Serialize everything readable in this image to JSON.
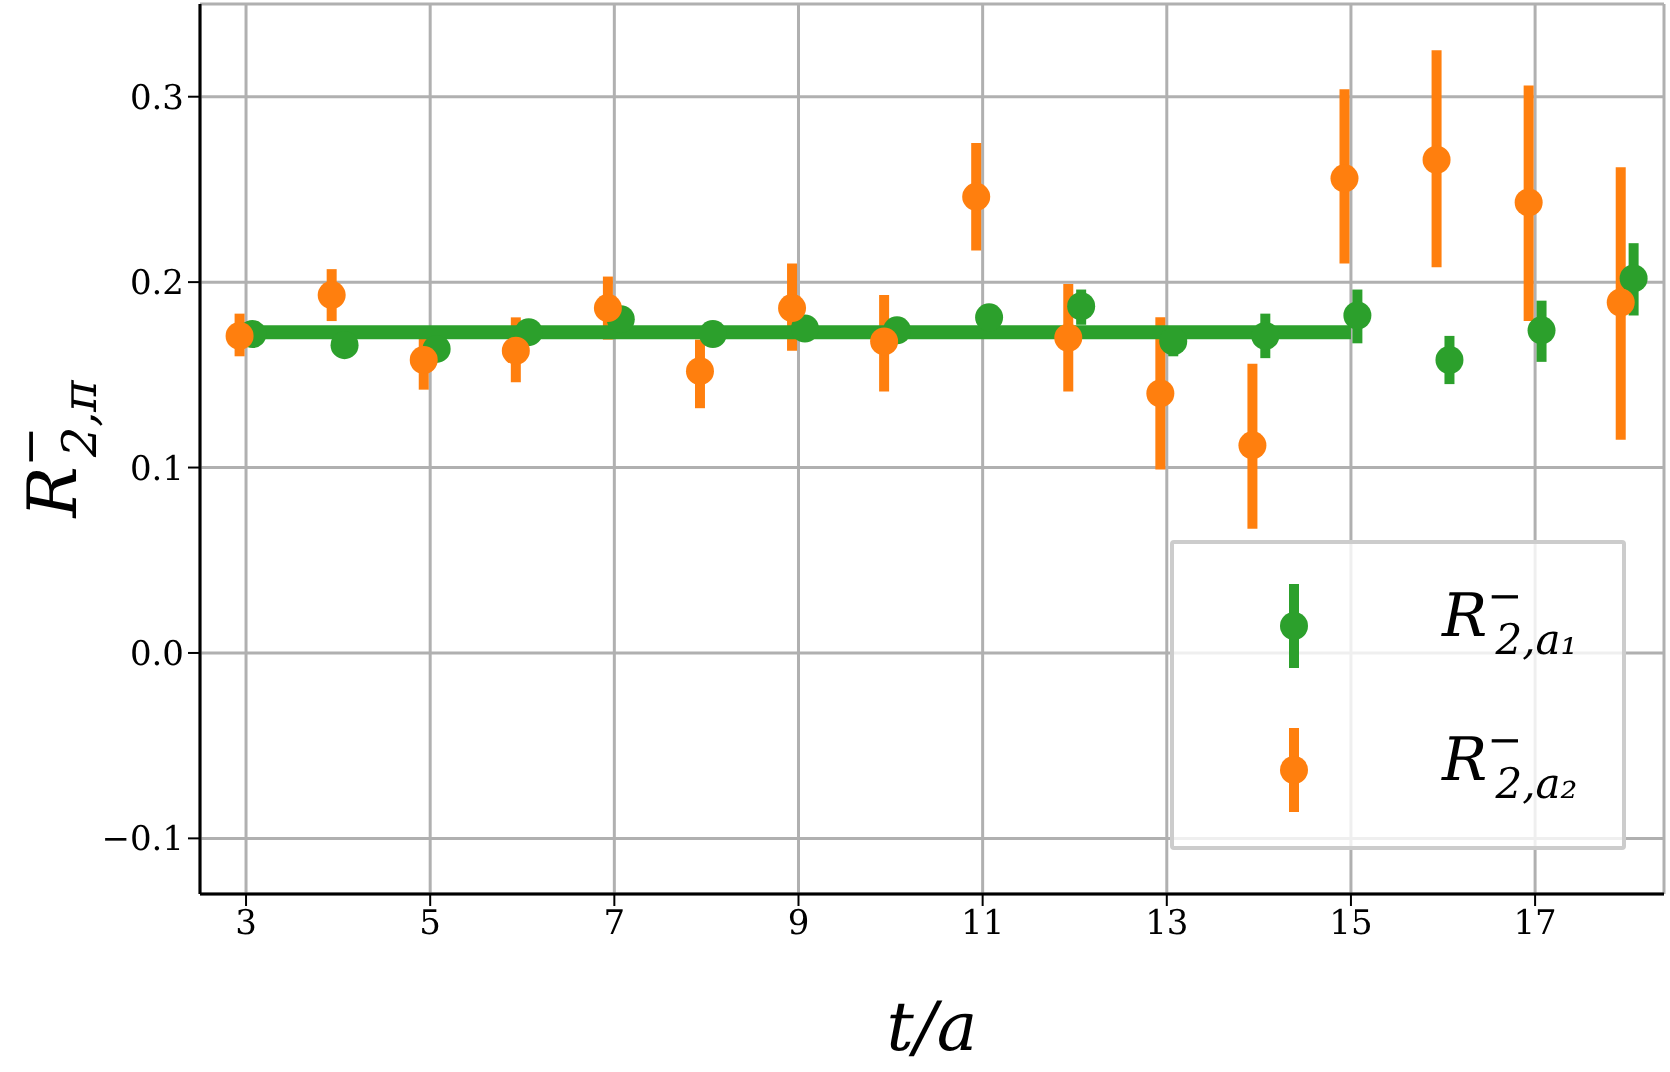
{
  "chart_data": {
    "type": "scatter",
    "xlabel": "t/a",
    "ylabel": "R$^{−}$$_{2,π}$",
    "xlim": [
      2.5,
      18.4
    ],
    "ylim": [
      -0.13,
      0.35
    ],
    "xticks": [
      3,
      5,
      7,
      9,
      11,
      13,
      15,
      17
    ],
    "yticks": [
      {
        "value": -0.1,
        "label": "−0.1"
      },
      {
        "value": 0,
        "label": "0.0"
      },
      0.1,
      0.2,
      0.3
    ],
    "grid": true,
    "legend": "bottom right",
    "marker": "circle",
    "series": [
      {
        "name": "R$^{−}$$_{2,a₁}$",
        "color": "#2ca02c",
        "x": [
          3.07,
          4.07,
          5.07,
          6.07,
          7.07,
          8.07,
          9.07,
          10.07,
          11.07,
          12.07,
          13.07,
          14.07,
          15.07,
          16.07,
          17.07,
          18.07
        ],
        "values": [
          0.172,
          0.166,
          0.164,
          0.173,
          0.18,
          0.172,
          0.175,
          0.174,
          0.181,
          0.187,
          0.168,
          0.171,
          0.182,
          0.158,
          0.174,
          0.202
        ],
        "errors": [
          0.005,
          0.004,
          0.006,
          0.005,
          0.006,
          0.004,
          0.005,
          0.005,
          0.005,
          [
            0.177,
            0.196
          ],
          0.008,
          [
            0.159,
            0.183
          ],
          [
            0.167,
            0.196
          ],
          [
            0.145,
            0.171
          ],
          [
            0.157,
            0.19
          ],
          [
            0.182,
            0.221
          ]
        ]
      },
      {
        "name": "R$^{−}$$_{2,a₂}$",
        "color": "#ff7f0e",
        "x": [
          2.93,
          3.93,
          4.93,
          5.93,
          6.93,
          7.93,
          8.93,
          9.93,
          10.93,
          11.93,
          12.93,
          13.93,
          14.93,
          15.93,
          16.93,
          17.93
        ],
        "values": [
          0.171,
          0.193,
          0.158,
          0.163,
          0.186,
          0.152,
          0.186,
          0.168,
          0.246,
          0.17,
          0.14,
          0.112,
          0.256,
          0.266,
          0.243,
          0.189
        ],
        "errors": [
          [
            0.16,
            0.183
          ],
          [
            0.179,
            0.207
          ],
          [
            0.142,
            0.17
          ],
          [
            0.146,
            0.181
          ],
          [
            0.169,
            0.203
          ],
          [
            0.132,
            0.169
          ],
          [
            0.163,
            0.21
          ],
          [
            0.141,
            0.193
          ],
          [
            0.217,
            0.275
          ],
          [
            0.141,
            0.199
          ],
          [
            0.099,
            0.181
          ],
          [
            0.067,
            0.156
          ],
          [
            0.21,
            0.304
          ],
          [
            0.208,
            0.325
          ],
          [
            0.179,
            0.306
          ],
          [
            0.115,
            0.262
          ]
        ]
      },
      {
        "type": "line",
        "color": "#2ca02c",
        "marker": "none",
        "x": [
          3,
          15
        ],
        "values": [
          0.173,
          0.173
        ]
      }
    ]
  }
}
